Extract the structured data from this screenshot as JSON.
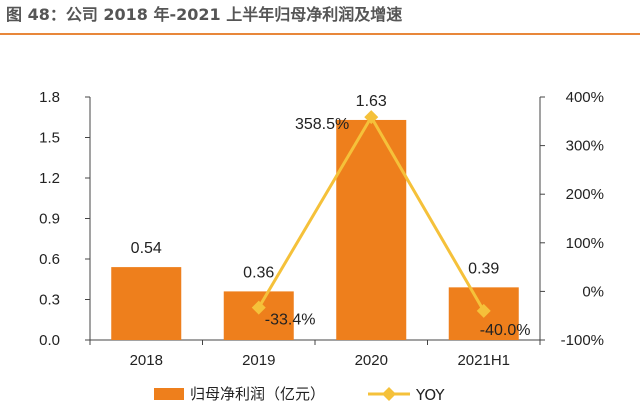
{
  "figure": {
    "title": "图 48：公司 2018 年-2021 上半年归母净利润及增速"
  },
  "colors": {
    "bar": "#ee7f1c",
    "line": "#f5c13a",
    "title_rule": "#e8873a"
  },
  "chart_data": {
    "type": "bar",
    "categories": [
      "2018",
      "2019",
      "2020",
      "2021H1"
    ],
    "series": [
      {
        "name": "归母净利润（亿元）",
        "type": "bar",
        "axis": "left",
        "values": [
          0.54,
          0.36,
          1.63,
          0.39
        ],
        "labels": [
          "0.54",
          "0.36",
          "1.63",
          "0.39"
        ]
      },
      {
        "name": "YOY",
        "type": "line",
        "axis": "right",
        "values": [
          null,
          -33.4,
          358.5,
          -40.0
        ],
        "labels": [
          "",
          "-33.4%",
          "358.5%",
          "-40.0%"
        ]
      }
    ],
    "left_axis": {
      "ylim": [
        0,
        1.8
      ],
      "ticks": [
        "0.0",
        "0.3",
        "0.6",
        "0.9",
        "1.2",
        "1.5",
        "1.8"
      ]
    },
    "right_axis": {
      "ylim": [
        -100,
        400
      ],
      "ticks": [
        "-100%",
        "0%",
        "100%",
        "200%",
        "300%",
        "400%"
      ]
    },
    "grid": false,
    "legend_position": "bottom"
  }
}
